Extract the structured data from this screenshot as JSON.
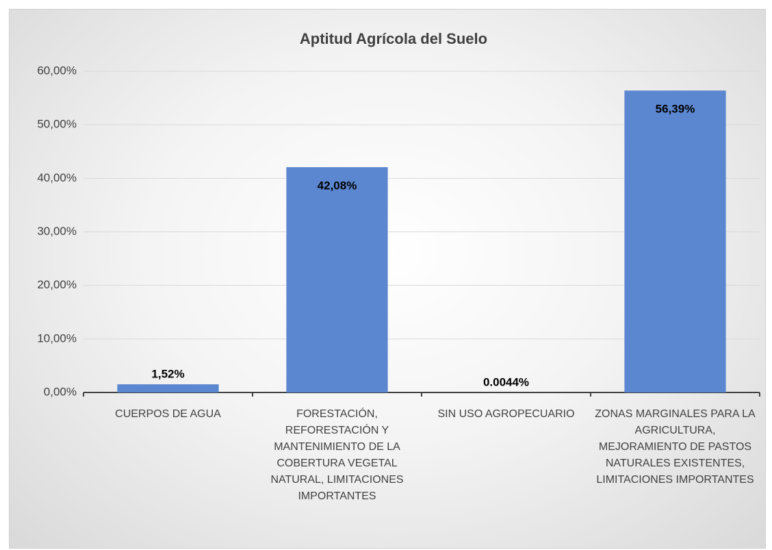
{
  "chart_data": {
    "type": "bar",
    "title": "Aptitud Agrícola del Suelo",
    "categories": [
      "CUERPOS DE AGUA",
      "FORESTACIÓN, REFORESTACIÓN Y MANTENIMIENTO DE LA COBERTURA VEGETAL NATURAL, LIMITACIONES IMPORTANTES",
      "SIN USO AGROPECUARIO",
      "ZONAS MARGINALES PARA LA AGRICULTURA, MEJORAMIENTO DE PASTOS NATURALES EXISTENTES, LIMITACIONES IMPORTANTES"
    ],
    "values": [
      1.52,
      42.08,
      0.0044,
      56.39
    ],
    "value_labels": [
      "1,52%",
      "42,08%",
      "0.0044%",
      "56,39%"
    ],
    "color": "#5b86d0",
    "ylim": [
      0,
      60
    ],
    "yticks": [
      {
        "value": 0,
        "label": "0,00%"
      },
      {
        "value": 10,
        "label": "10,00%"
      },
      {
        "value": 20,
        "label": "20,00%"
      },
      {
        "value": 30,
        "label": "30,00%"
      },
      {
        "value": 40,
        "label": "40,00%"
      },
      {
        "value": 50,
        "label": "50,00%"
      },
      {
        "value": 60,
        "label": "60,00%"
      }
    ],
    "grid": true
  }
}
